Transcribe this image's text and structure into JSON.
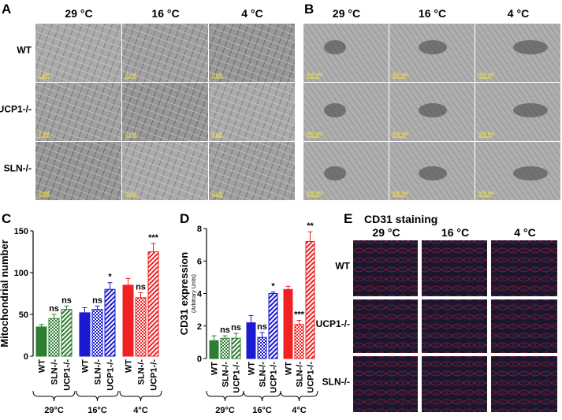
{
  "panel_a": {
    "label": "A",
    "columns": [
      "29 °C",
      "16 °C",
      "4 °C"
    ],
    "rows": [
      "WT",
      "UCP1-/-",
      "SLN-/-"
    ],
    "scale_bars": [
      [
        "2 μM",
        "2 μM",
        "2 μM"
      ],
      [
        "2 μM",
        "2 μM",
        "2 μM"
      ],
      [
        "2 μM",
        "2 μM",
        "2 μM"
      ]
    ]
  },
  "panel_b": {
    "label": "B",
    "columns": [
      "29 °C",
      "16 °C",
      "4 °C"
    ],
    "scale_bars": [
      [
        "500 nM",
        "500 nM",
        "500 nM"
      ],
      [
        "500 nM",
        "500 nM",
        "500 nM"
      ],
      [
        "500 nM",
        "500 nM",
        "500 nM"
      ]
    ]
  },
  "chart_data": [
    {
      "type": "bar",
      "panel_label": "C",
      "y_label": "Mitochondrial number",
      "categories": [
        "WT",
        "SLN-/-",
        "UCP1-/-",
        "WT",
        "SLN-/-",
        "UCP1-/-",
        "WT",
        "SLN-/-",
        "UCP1-/-"
      ],
      "values": [
        35,
        45,
        56,
        52,
        56,
        80,
        85,
        70,
        125
      ],
      "errors": [
        3,
        5,
        4,
        6,
        4,
        8,
        8,
        6,
        10
      ],
      "annotations": [
        null,
        "ns",
        "ns",
        null,
        "ns",
        "*",
        null,
        "ns",
        "***"
      ],
      "colors": [
        "#2e7d32",
        "#2e7d32",
        "#2e7d32",
        "#1a1ad0",
        "#1a1ad0",
        "#1a1ad0",
        "#ee2222",
        "#ee2222",
        "#ee2222"
      ],
      "fill_styles": [
        "solid",
        "checkered",
        "hatched",
        "solid",
        "checkered",
        "hatched",
        "solid",
        "checkered",
        "hatched"
      ],
      "groups": [
        "29°C",
        "16°C",
        "4°C"
      ],
      "ylim": [
        0,
        150
      ],
      "yticks": [
        0,
        50,
        100,
        150
      ]
    },
    {
      "type": "bar",
      "panel_label": "D",
      "y_label": "CD31 expression",
      "y_sublabel": "(Arbitrary Units)",
      "categories": [
        "WT",
        "SLN-/-",
        "UCP1-/-",
        "WT",
        "SLN-/-",
        "UCP1-/-",
        "WT",
        "SLN-/-",
        "UCP1-/-"
      ],
      "values": [
        1.1,
        1.25,
        1.25,
        2.2,
        1.3,
        4.0,
        4.25,
        2.1,
        7.2
      ],
      "errors": [
        0.3,
        0.15,
        0.3,
        0.45,
        0.3,
        0.1,
        0.2,
        0.25,
        0.6
      ],
      "annotations": [
        null,
        "ns",
        "ns",
        null,
        "ns",
        "*",
        null,
        "***",
        "**"
      ],
      "colors": [
        "#2e7d32",
        "#2e7d32",
        "#2e7d32",
        "#1a1ad0",
        "#1a1ad0",
        "#1a1ad0",
        "#ee2222",
        "#ee2222",
        "#ee2222"
      ],
      "fill_styles": [
        "solid",
        "checkered",
        "hatched",
        "solid",
        "checkered",
        "hatched",
        "solid",
        "checkered",
        "hatched"
      ],
      "groups": [
        "29°C",
        "16°C",
        "4°C"
      ],
      "ylim": [
        0,
        8
      ],
      "yticks": [
        0,
        2,
        4,
        6,
        8
      ]
    }
  ],
  "panel_e": {
    "label": "E",
    "title": "CD31 staining",
    "columns": [
      "29 °C",
      "16 °C",
      "4 °C"
    ],
    "rows": [
      "WT",
      "UCP1-/-",
      "SLN-/-"
    ]
  }
}
